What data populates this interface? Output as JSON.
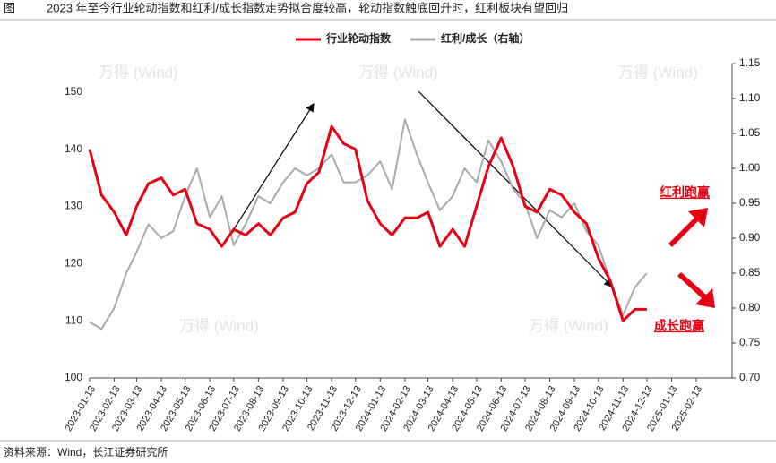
{
  "chart_data": {
    "type": "line",
    "figure_label": "图",
    "title": "2023 年至今行业轮动指数和红利/成长指数走势拟合度较高，轮动指数触底回升时，红利板块有望回归",
    "source": "资料来源：Wind，长江证券研究所",
    "watermark": "万得 (Wind)",
    "annotations": [
      "红利跑赢",
      "成长跑赢"
    ],
    "x": [
      "2023-01-13",
      "2023-01-28",
      "2023-02-13",
      "2023-02-28",
      "2023-03-13",
      "2023-03-28",
      "2023-04-13",
      "2023-04-28",
      "2023-05-13",
      "2023-05-28",
      "2023-06-13",
      "2023-06-28",
      "2023-07-13",
      "2023-07-28",
      "2023-08-13",
      "2023-08-28",
      "2023-09-13",
      "2023-09-28",
      "2023-10-13",
      "2023-10-28",
      "2023-11-13",
      "2023-11-28",
      "2023-12-13",
      "2023-12-28",
      "2024-01-13",
      "2024-01-28",
      "2024-02-13",
      "2024-02-28",
      "2024-03-13",
      "2024-03-28",
      "2024-04-13",
      "2024-04-28",
      "2024-05-13",
      "2024-05-28",
      "2024-06-13",
      "2024-06-28",
      "2024-07-13",
      "2024-07-28",
      "2024-08-13",
      "2024-08-28",
      "2024-09-13",
      "2024-09-28",
      "2024-10-13",
      "2024-10-28",
      "2024-11-13",
      "2024-11-28",
      "2024-12-13"
    ],
    "series": [
      {
        "name": "行业轮动指数",
        "color": "#e60012",
        "values": [
          140,
          132,
          129,
          125,
          130,
          134,
          135,
          132,
          133,
          127,
          126,
          123,
          126,
          125,
          127,
          125,
          128,
          129,
          134,
          136,
          144,
          141,
          140,
          131,
          127,
          125,
          128,
          128,
          129,
          123,
          126,
          123,
          130,
          137,
          142,
          137,
          130,
          129,
          133,
          132,
          129,
          127,
          121,
          117,
          110,
          112,
          112
        ]
      },
      {
        "name": "红利/成长（右轴）",
        "color": "#aaaaaa",
        "axis": "y2",
        "values": [
          0.78,
          0.77,
          0.8,
          0.85,
          0.88,
          0.92,
          0.9,
          0.91,
          0.96,
          1.0,
          0.93,
          0.96,
          0.89,
          0.92,
          0.96,
          0.95,
          0.98,
          1.0,
          0.99,
          1.0,
          1.02,
          0.98,
          0.98,
          0.99,
          1.01,
          0.97,
          1.07,
          1.02,
          0.98,
          0.94,
          0.96,
          1.0,
          0.98,
          1.04,
          1.01,
          0.97,
          0.95,
          0.9,
          0.94,
          0.93,
          0.95,
          0.91,
          0.89,
          0.84,
          0.79,
          0.83,
          0.85
        ]
      }
    ],
    "xlim": [
      "2023-01-13",
      "2025-02-13"
    ],
    "xticks": [
      "2023-01-13",
      "2023-02-13",
      "2023-03-13",
      "2023-04-13",
      "2023-05-13",
      "2023-06-13",
      "2023-07-13",
      "2023-08-13",
      "2023-09-13",
      "2023-10-13",
      "2023-11-13",
      "2023-12-13",
      "2024-01-13",
      "2024-02-13",
      "2024-03-13",
      "2024-04-13",
      "2024-05-13",
      "2024-06-13",
      "2024-07-13",
      "2024-08-13",
      "2024-09-13",
      "2024-10-13",
      "2024-11-13",
      "2024-12-13",
      "2025-01-13",
      "2025-02-13"
    ],
    "ylim": [
      100,
      155
    ],
    "yticks": [
      100,
      110,
      120,
      130,
      140,
      150
    ],
    "y2lim": [
      0.7,
      1.15
    ],
    "y2ticks": [
      {
        "value": 0.7,
        "label": "0.70"
      },
      {
        "value": 0.75,
        "label": "0.75"
      },
      {
        "value": 0.8,
        "label": "0.80"
      },
      {
        "value": 0.85,
        "label": "0.85"
      },
      {
        "value": 0.9,
        "label": "0.90"
      },
      {
        "value": 0.95,
        "label": "0.95"
      },
      {
        "value": 1.0,
        "label": "1.00"
      },
      {
        "value": 1.05,
        "label": "1.05"
      },
      {
        "value": 1.1,
        "label": "1.10"
      },
      {
        "value": 1.15,
        "label": "1.15"
      }
    ],
    "legend": "top"
  }
}
